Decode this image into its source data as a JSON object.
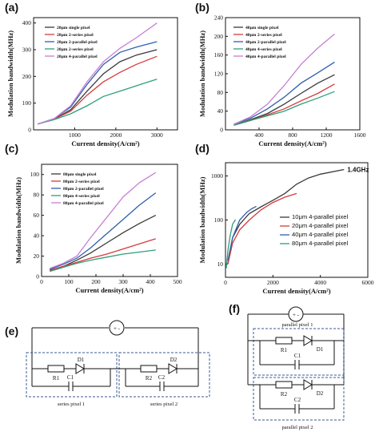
{
  "chart_data": [
    {
      "id": "a",
      "panel_label": "(a)",
      "type": "line",
      "xlabel": "Current density(A/cm²)",
      "ylabel": "Modulation bandwidth(MHz)",
      "xlim": [
        0,
        3500
      ],
      "ylim": [
        0,
        420
      ],
      "xticks": [
        1000,
        2000,
        3000
      ],
      "yticks": [
        0,
        100,
        200,
        300,
        400
      ],
      "scale": "linear",
      "legend_position": "top-left",
      "series": [
        {
          "name": "20μm single pixel",
          "color": "#3a3a3a",
          "x": [
            100,
            500,
            900,
            1300,
            1700,
            2100,
            2500,
            3000
          ],
          "y": [
            22,
            40,
            75,
            145,
            210,
            255,
            280,
            300
          ]
        },
        {
          "name": "20μm 2-series pixel",
          "color": "#d43c3c",
          "x": [
            100,
            500,
            900,
            1300,
            1700,
            2100,
            2500,
            3000
          ],
          "y": [
            22,
            40,
            70,
            130,
            180,
            215,
            245,
            275
          ]
        },
        {
          "name": "20μm 2-parallel pixel",
          "color": "#2f5fae",
          "x": [
            100,
            500,
            900,
            1300,
            1700,
            2100,
            2500,
            3000
          ],
          "y": [
            22,
            42,
            85,
            170,
            245,
            290,
            310,
            330
          ]
        },
        {
          "name": "20μm 2-series pixel",
          "color": "#2e9f7a",
          "x": [
            100,
            500,
            900,
            1300,
            1700,
            2100,
            2500,
            3000
          ],
          "y": [
            22,
            38,
            60,
            90,
            125,
            145,
            165,
            190
          ]
        },
        {
          "name": "20μm 4-parallel pixel",
          "color": "#c77fd6",
          "x": [
            100,
            500,
            900,
            1300,
            1700,
            2100,
            2500,
            3000
          ],
          "y": [
            22,
            42,
            90,
            180,
            255,
            305,
            345,
            400
          ]
        }
      ]
    },
    {
      "id": "b",
      "panel_label": "(b)",
      "type": "line",
      "xlabel": "Current density(A/cm²)",
      "ylabel": "Modulation bandwidth(MHz)",
      "xlim": [
        0,
        1600
      ],
      "ylim": [
        0,
        240
      ],
      "xticks": [
        400,
        800,
        1200,
        1600
      ],
      "yticks": [
        0,
        40,
        80,
        120,
        160,
        200,
        240
      ],
      "scale": "linear",
      "legend_position": "top-left",
      "series": [
        {
          "name": "40μm single pixel",
          "color": "#3a3a3a",
          "x": [
            100,
            300,
            500,
            700,
            900,
            1100,
            1300
          ],
          "y": [
            10,
            22,
            35,
            55,
            78,
            100,
            118
          ]
        },
        {
          "name": "40μm 2-series pixel",
          "color": "#d43c3c",
          "x": [
            100,
            300,
            500,
            700,
            900,
            1100,
            1300
          ],
          "y": [
            10,
            20,
            32,
            45,
            62,
            78,
            98
          ]
        },
        {
          "name": "40μm 2-parallel pixel",
          "color": "#2f5fae",
          "x": [
            100,
            300,
            500,
            700,
            900,
            1100,
            1300
          ],
          "y": [
            12,
            25,
            45,
            70,
            100,
            122,
            145
          ]
        },
        {
          "name": "40μm 4-series pixel",
          "color": "#2e9f7a",
          "x": [
            100,
            300,
            500,
            700,
            900,
            1100,
            1300
          ],
          "y": [
            10,
            20,
            30,
            40,
            55,
            68,
            82
          ]
        },
        {
          "name": "40μm 4-parallel pixel",
          "color": "#c77fd6",
          "x": [
            100,
            300,
            500,
            700,
            900,
            1100,
            1300
          ],
          "y": [
            12,
            28,
            55,
            95,
            140,
            175,
            205
          ]
        }
      ]
    },
    {
      "id": "c",
      "panel_label": "(c)",
      "type": "line",
      "xlabel": "Current density(A/cm²)",
      "ylabel": "Modulation bandwidth(MHz)",
      "xlim": [
        0,
        500
      ],
      "ylim": [
        0,
        110
      ],
      "xticks": [
        0,
        100,
        200,
        300,
        400,
        500
      ],
      "yticks": [
        0,
        20,
        40,
        60,
        80,
        100
      ],
      "scale": "linear",
      "legend_position": "top-left",
      "series": [
        {
          "name": "80μm single pixel",
          "color": "#3a3a3a",
          "x": [
            30,
            80,
            130,
            180,
            240,
            300,
            360,
            420
          ],
          "y": [
            6,
            10,
            16,
            23,
            33,
            43,
            52,
            60
          ]
        },
        {
          "name": "80μm 2-series pixel",
          "color": "#d43c3c",
          "x": [
            30,
            80,
            130,
            180,
            240,
            300,
            360,
            420
          ],
          "y": [
            6,
            10,
            14,
            18,
            22,
            27,
            32,
            37
          ]
        },
        {
          "name": "80μm 2-parallel pixel",
          "color": "#2f5fae",
          "x": [
            30,
            80,
            130,
            180,
            240,
            300,
            360,
            420
          ],
          "y": [
            7,
            12,
            18,
            28,
            42,
            56,
            70,
            82
          ]
        },
        {
          "name": "80μm 4-series pixel",
          "color": "#2e9f7a",
          "x": [
            30,
            80,
            130,
            180,
            240,
            300,
            360,
            420
          ],
          "y": [
            5,
            9,
            13,
            16,
            19,
            22,
            24,
            26
          ]
        },
        {
          "name": "80μm 4-parallel pixel",
          "color": "#c77fd6",
          "x": [
            30,
            80,
            130,
            180,
            240,
            300,
            360,
            420
          ],
          "y": [
            8,
            13,
            20,
            38,
            58,
            78,
            92,
            102
          ]
        }
      ]
    },
    {
      "id": "d",
      "panel_label": "(d)",
      "type": "line",
      "xlabel": "Current density(A/cm²)",
      "ylabel": "Modulation bandwidth(MHz)",
      "xlim": [
        0,
        6000
      ],
      "ylim": [
        5,
        2000
      ],
      "xticks": [
        0,
        2000,
        4000,
        6000
      ],
      "yticks": [
        10,
        100,
        1000
      ],
      "scale": "log",
      "legend_position": "center-right",
      "annotation": "1.4GHz",
      "series": [
        {
          "name": "10μm 4-parallel pixel",
          "color": "#3a3a3a",
          "x": [
            100,
            300,
            600,
            1000,
            1500,
            2000,
            2500,
            3000,
            3500,
            4000,
            5000
          ],
          "y": [
            10,
            40,
            80,
            140,
            200,
            280,
            400,
            650,
            900,
            1100,
            1400
          ]
        },
        {
          "name": "20μm 4-parallel pixel",
          "color": "#d43c3c",
          "x": [
            100,
            300,
            600,
            1000,
            1500,
            2000,
            2500,
            3000
          ],
          "y": [
            10,
            30,
            60,
            100,
            170,
            250,
            330,
            400
          ]
        },
        {
          "name": "40μm 4-parallel pixel",
          "color": "#2f5fae",
          "x": [
            100,
            300,
            600,
            900,
            1100,
            1300
          ],
          "y": [
            12,
            40,
            100,
            150,
            180,
            205
          ]
        },
        {
          "name": "80μm 4-parallel pixel",
          "color": "#2e9f7a",
          "x": [
            30,
            100,
            200,
            300,
            420
          ],
          "y": [
            8,
            20,
            45,
            80,
            102
          ]
        }
      ]
    }
  ],
  "circuits": {
    "e": {
      "panel_label": "(e)",
      "source_symbol": "+ -",
      "labels": {
        "r1": "R1",
        "d1": "D1",
        "c1": "C1",
        "r2": "R2",
        "d2": "D2",
        "c2": "C2"
      },
      "pixel1": "series pixel 1",
      "pixel2": "series pixel 2"
    },
    "f": {
      "panel_label": "(f)",
      "source_symbol": "+ -",
      "labels": {
        "r1": "R1",
        "d1": "D1",
        "c1": "C1",
        "r2": "R2",
        "d2": "D2",
        "c2": "C2"
      },
      "pixel1": "parallel pixel 1",
      "pixel2": "parallel pixel 2"
    }
  }
}
